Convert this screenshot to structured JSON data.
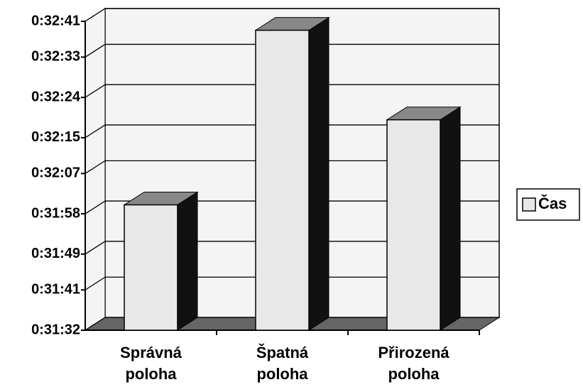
{
  "chart_data": {
    "type": "bar",
    "categories": [
      "Správná poloha",
      "Špatná poloha",
      "Přirozená poloha"
    ],
    "series": [
      {
        "name": "Čas",
        "color": "#e8e8e8",
        "values": [
          1920,
          1959,
          1939
        ]
      }
    ],
    "ylim": [
      1892,
      1961
    ],
    "yticks": [
      {
        "value": 1892,
        "label": "0:31:32"
      },
      {
        "value": 1901,
        "label": "0:31:41"
      },
      {
        "value": 1909,
        "label": "0:31:49"
      },
      {
        "value": 1918,
        "label": "0:31:58"
      },
      {
        "value": 1927,
        "label": "0:32:07"
      },
      {
        "value": 1935,
        "label": "0:32:15"
      },
      {
        "value": 1944,
        "label": "0:32:24"
      },
      {
        "value": 1953,
        "label": "0:32:33"
      },
      {
        "value": 1961,
        "label": "0:32:41"
      }
    ],
    "grid": true,
    "legend": "right"
  }
}
